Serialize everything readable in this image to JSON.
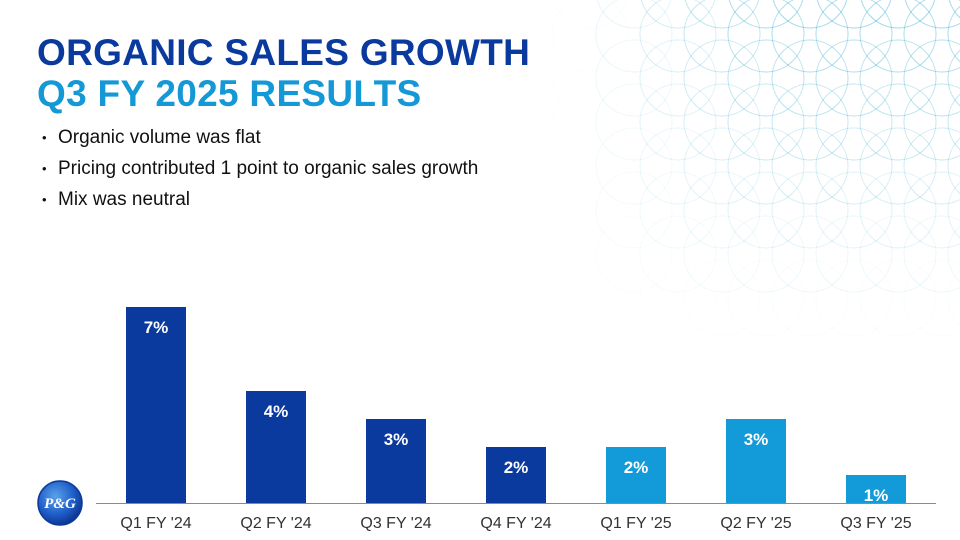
{
  "slide": {
    "title_line1": "ORGANIC SALES GROWTH",
    "title_line2": "Q3 FY 2025 RESULTS",
    "bullets": [
      "Organic volume was flat",
      "Pricing contributed 1 point to organic sales growth",
      "Mix was neutral"
    ],
    "logo_text": "P&G"
  },
  "colors": {
    "fy24": "#0a3a9e",
    "fy25": "#139ad8",
    "title_primary": "#0a3a9e",
    "title_secondary": "#1598d6"
  },
  "chart_data": {
    "type": "bar",
    "categories": [
      "Q1 FY '24",
      "Q2 FY '24",
      "Q3 FY '24",
      "Q4 FY '24",
      "Q1 FY '25",
      "Q2 FY '25",
      "Q3 FY '25"
    ],
    "values": [
      7,
      4,
      3,
      2,
      2,
      3,
      1
    ],
    "data_labels": [
      "7%",
      "4%",
      "3%",
      "2%",
      "2%",
      "3%",
      "1%"
    ],
    "bar_color_groups": [
      "fy24",
      "fy24",
      "fy24",
      "fy24",
      "fy25",
      "fy25",
      "fy25"
    ],
    "title": "",
    "xlabel": "",
    "ylabel": "",
    "ylim": [
      0,
      7
    ],
    "grid": false,
    "legend": "none"
  }
}
